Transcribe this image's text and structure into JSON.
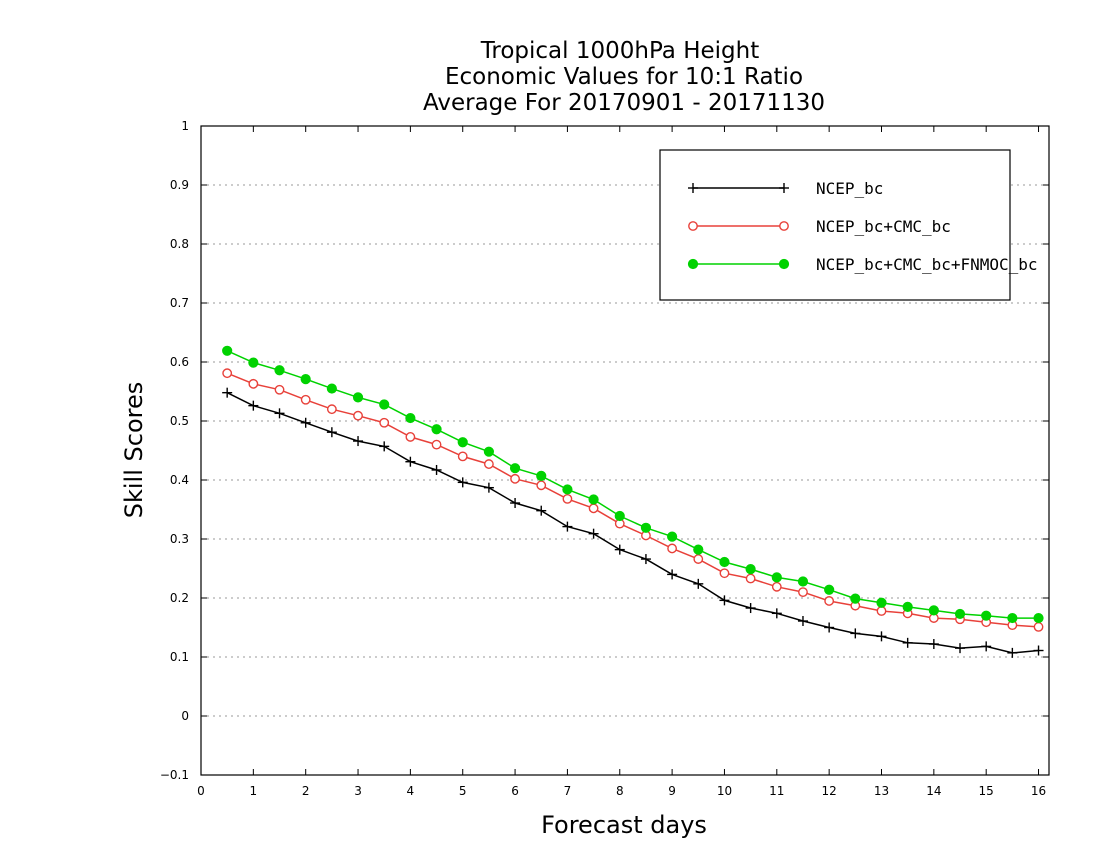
{
  "chart_data": {
    "type": "line",
    "title_lines": [
      "Tropical 1000hPa Height",
      "Economic Values for 10:1 Ratio",
      "Average For 20170901 - 20171130"
    ],
    "xlabel": "Forecast days",
    "ylabel": "Skill Scores",
    "xlim": [
      0,
      16.2
    ],
    "ylim": [
      -0.1,
      1
    ],
    "xticks": [
      0,
      1,
      2,
      3,
      4,
      5,
      6,
      7,
      8,
      9,
      10,
      11,
      12,
      13,
      14,
      15,
      16
    ],
    "xtick_labels": [
      "0",
      "1",
      "2",
      "3",
      "4",
      "5",
      "6",
      "7",
      "8",
      "9",
      "10",
      "11",
      "12",
      "13",
      "14",
      "15",
      "16"
    ],
    "yticks": [
      -0.1,
      0,
      0.1,
      0.2,
      0.3,
      0.4,
      0.5,
      0.6,
      0.7,
      0.8,
      0.9,
      1
    ],
    "ytick_labels": [
      "−0.1",
      "0",
      "0.1",
      "0.2",
      "0.3",
      "0.4",
      "0.5",
      "0.6",
      "0.7",
      "0.8",
      "0.9",
      "1"
    ],
    "grid": "horizontal dotted",
    "legend_position": "top-right",
    "x": [
      0.5,
      1,
      1.5,
      2,
      2.5,
      3,
      3.5,
      4,
      4.5,
      5,
      5.5,
      6,
      6.5,
      7,
      7.5,
      8,
      8.5,
      9,
      9.5,
      10,
      10.5,
      11,
      11.5,
      12,
      12.5,
      13,
      13.5,
      14,
      14.5,
      15,
      15.5,
      16
    ],
    "series": [
      {
        "name": "NCEP_bc",
        "color": "#000000",
        "marker": "plus",
        "values": [
          0.548,
          0.526,
          0.513,
          0.497,
          0.481,
          0.466,
          0.457,
          0.431,
          0.417,
          0.396,
          0.387,
          0.361,
          0.348,
          0.321,
          0.309,
          0.282,
          0.266,
          0.24,
          0.224,
          0.196,
          0.183,
          0.174,
          0.161,
          0.15,
          0.14,
          0.135,
          0.124,
          0.122,
          0.115,
          0.118,
          0.107,
          0.111
        ]
      },
      {
        "name": "NCEP_bc+CMC_bc",
        "color": "#e8413a",
        "marker": "open-circle",
        "values": [
          0.581,
          0.563,
          0.553,
          0.536,
          0.52,
          0.509,
          0.497,
          0.473,
          0.46,
          0.44,
          0.427,
          0.402,
          0.391,
          0.368,
          0.352,
          0.326,
          0.306,
          0.284,
          0.266,
          0.242,
          0.233,
          0.219,
          0.21,
          0.195,
          0.187,
          0.178,
          0.174,
          0.166,
          0.164,
          0.159,
          0.154,
          0.151
        ]
      },
      {
        "name": "NCEP_bc+CMC_bc+FNMOC_bc",
        "color": "#00d200",
        "marker": "filled-circle",
        "values": [
          0.619,
          0.599,
          0.586,
          0.571,
          0.555,
          0.54,
          0.528,
          0.505,
          0.486,
          0.464,
          0.448,
          0.42,
          0.407,
          0.384,
          0.367,
          0.339,
          0.319,
          0.304,
          0.282,
          0.261,
          0.249,
          0.235,
          0.228,
          0.214,
          0.199,
          0.192,
          0.185,
          0.179,
          0.173,
          0.17,
          0.166,
          0.166
        ]
      }
    ]
  }
}
